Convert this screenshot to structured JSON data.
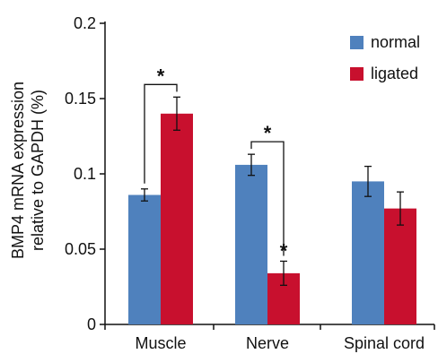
{
  "chart_data": {
    "type": "bar",
    "title": "",
    "ylabel_line1": "BMP4 mRNA expression",
    "ylabel_line2": "relative to GAPDH (%)",
    "xlabel": "",
    "ylim": [
      0,
      0.2
    ],
    "yticks": [
      {
        "value": 0,
        "label": "0"
      },
      {
        "value": 0.05,
        "label": "0.05"
      },
      {
        "value": 0.1,
        "label": "0.1"
      },
      {
        "value": 0.15,
        "label": "0.15"
      },
      {
        "value": 0.2,
        "label": "0.2"
      }
    ],
    "categories": [
      "Muscle",
      "Nerve",
      "Spinal cord"
    ],
    "series": [
      {
        "name": "normal",
        "color": "#4F81BD",
        "values": [
          0.086,
          0.106,
          0.095
        ],
        "errors": [
          0.004,
          0.007,
          0.01
        ]
      },
      {
        "name": "ligated",
        "color": "#C8102E",
        "values": [
          0.14,
          0.034,
          0.077
        ],
        "errors": [
          0.011,
          0.008,
          0.011
        ]
      }
    ],
    "legend_position": "top-right",
    "grid": false,
    "significance": [
      {
        "label": "*",
        "category_index": 0,
        "type": "bracket"
      },
      {
        "label": "*",
        "category_index": 1,
        "type": "bracket"
      },
      {
        "label": "*",
        "category_index": 1,
        "type": "bar",
        "series_index": 1
      }
    ]
  }
}
